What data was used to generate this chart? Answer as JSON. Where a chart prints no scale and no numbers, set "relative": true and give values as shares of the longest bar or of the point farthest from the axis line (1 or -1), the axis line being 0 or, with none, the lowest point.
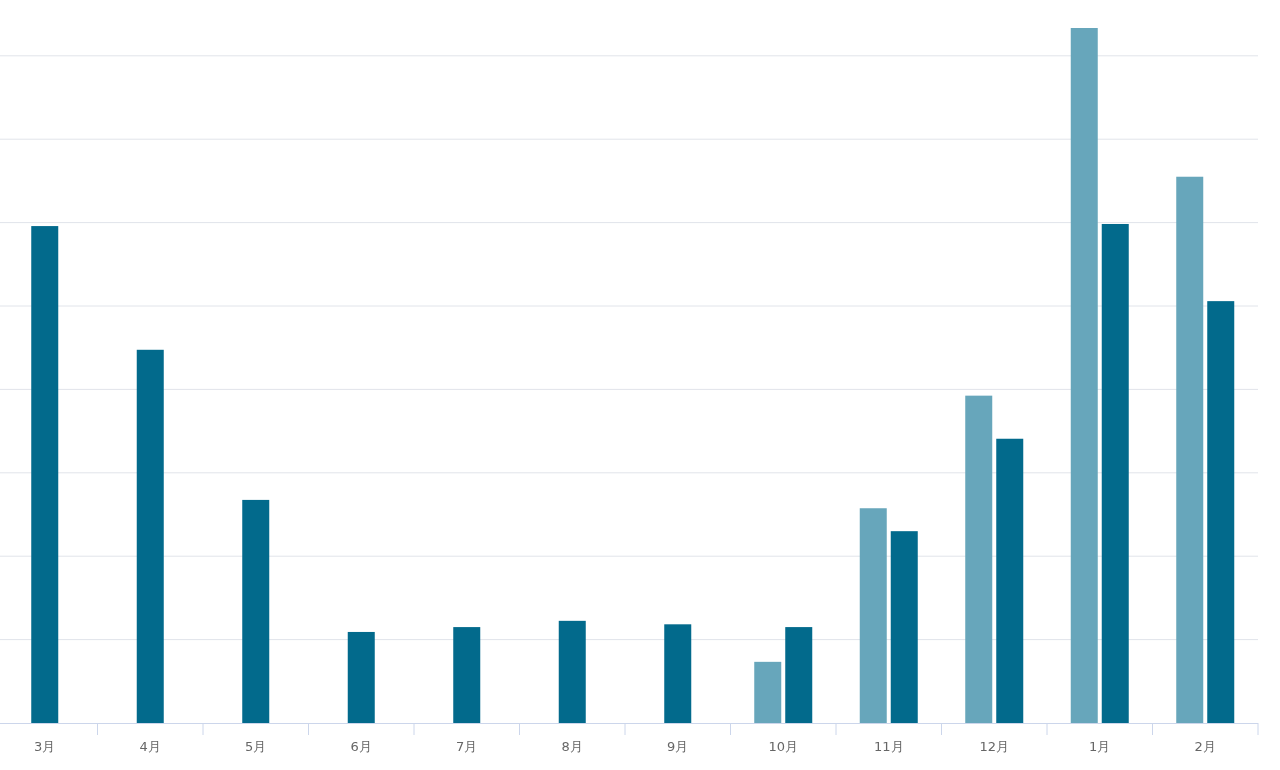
{
  "chart_data": {
    "type": "bar",
    "relative": true,
    "grid": true,
    "categories": [
      "3月",
      "4月",
      "5月",
      "6月",
      "7月",
      "8月",
      "9月",
      "10月",
      "11月",
      "12月",
      "1月",
      "2月"
    ],
    "series": [
      {
        "color": "#67a6bb",
        "values": [
          null,
          null,
          null,
          null,
          null,
          null,
          null,
          0.088,
          0.309,
          0.471,
          1,
          0.786
        ]
      },
      {
        "color": "#026a8c",
        "values": [
          0.715,
          0.537,
          0.321,
          0.131,
          0.138,
          0.147,
          0.142,
          0.138,
          0.276,
          0.409,
          0.718,
          0.607
        ]
      }
    ]
  }
}
